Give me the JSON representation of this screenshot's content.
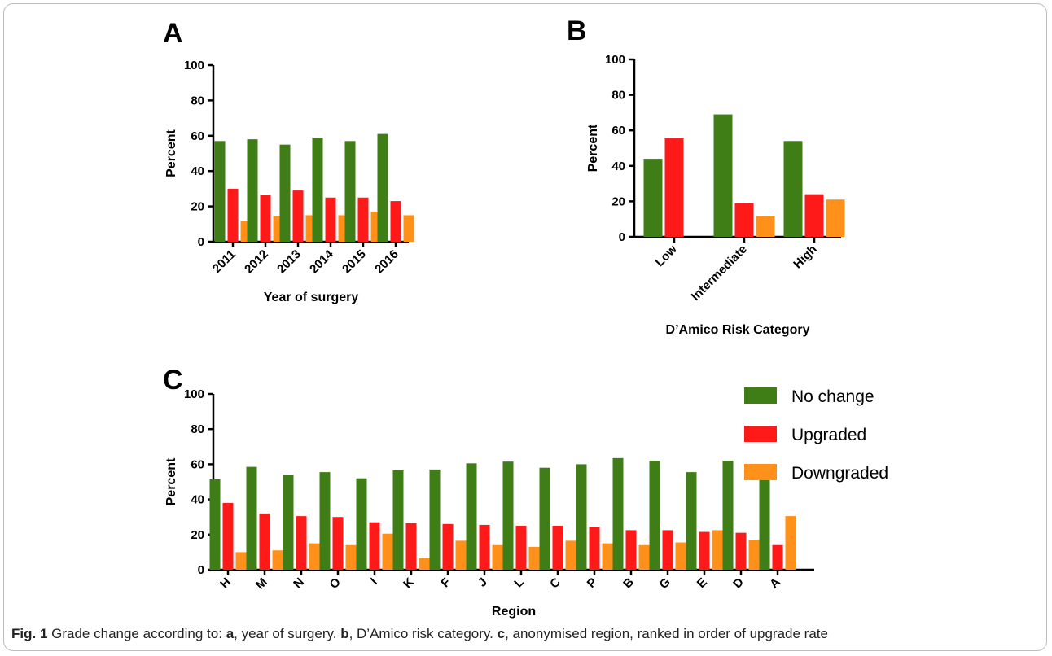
{
  "colors": {
    "no_change": "#3f7d16",
    "upgraded": "#ff1a1a",
    "downgraded": "#ff9019"
  },
  "legend": [
    {
      "key": "no_change",
      "label": "No change"
    },
    {
      "key": "upgraded",
      "label": "Upgraded"
    },
    {
      "key": "downgraded",
      "label": "Downgraded"
    }
  ],
  "caption": {
    "fig_label": "Fig. 1",
    "lead": "Grade change according to:",
    "a_letter": "a",
    "a_text": ", year of surgery.",
    "b_letter": "b",
    "b_text": ", D’Amico risk category.",
    "c_letter": "c",
    "c_text": ", anonymised region, ranked in order of upgrade rate"
  },
  "chart_data": [
    {
      "panel": "A",
      "type": "bar",
      "xlabel": "Year of surgery",
      "ylabel": "Percent",
      "ylim": [
        0,
        100
      ],
      "yticks": [
        0,
        20,
        40,
        60,
        80,
        100
      ],
      "categories": [
        "2011",
        "2012",
        "2013",
        "2014",
        "2015",
        "2016"
      ],
      "series": [
        {
          "name": "No change",
          "values": [
            57,
            58,
            55,
            59,
            57,
            61
          ]
        },
        {
          "name": "Upgraded",
          "values": [
            30,
            26.5,
            29,
            25,
            25,
            23
          ]
        },
        {
          "name": "Downgraded",
          "values": [
            12,
            14.5,
            15,
            15,
            17,
            15
          ]
        }
      ]
    },
    {
      "panel": "B",
      "type": "bar",
      "xlabel": "D’Amico Risk Category",
      "ylabel": "Percent",
      "ylim": [
        0,
        100
      ],
      "yticks": [
        0,
        20,
        40,
        60,
        80,
        100
      ],
      "categories": [
        "Low",
        "Intermediate",
        "High"
      ],
      "series": [
        {
          "name": "No change",
          "values": [
            44,
            69,
            54
          ]
        },
        {
          "name": "Upgraded",
          "values": [
            55.5,
            19,
            24
          ]
        },
        {
          "name": "Downgraded",
          "values": [
            0,
            11.5,
            21
          ]
        }
      ]
    },
    {
      "panel": "C",
      "type": "bar",
      "xlabel": "Region",
      "ylabel": "Percent",
      "ylim": [
        0,
        100
      ],
      "yticks": [
        0,
        20,
        40,
        60,
        80,
        100
      ],
      "categories": [
        "H",
        "M",
        "N",
        "O",
        "I",
        "K",
        "F",
        "J",
        "L",
        "C",
        "P",
        "B",
        "G",
        "E",
        "D",
        "A"
      ],
      "series": [
        {
          "name": "No change",
          "values": [
            51.5,
            58.5,
            54,
            55.5,
            52,
            56.5,
            57,
            60.5,
            61.5,
            58,
            60,
            63.5,
            62,
            55.5,
            62,
            55.5
          ]
        },
        {
          "name": "Upgraded",
          "values": [
            38,
            32,
            30.5,
            30,
            27,
            26.5,
            26,
            25.5,
            25,
            25,
            24.5,
            22.5,
            22.5,
            21.5,
            21,
            14
          ]
        },
        {
          "name": "Downgraded",
          "values": [
            10,
            11,
            15,
            14,
            20.5,
            6.5,
            16.5,
            14,
            13,
            16.5,
            15,
            14,
            15.5,
            22.5,
            17,
            30.5
          ]
        }
      ]
    }
  ]
}
